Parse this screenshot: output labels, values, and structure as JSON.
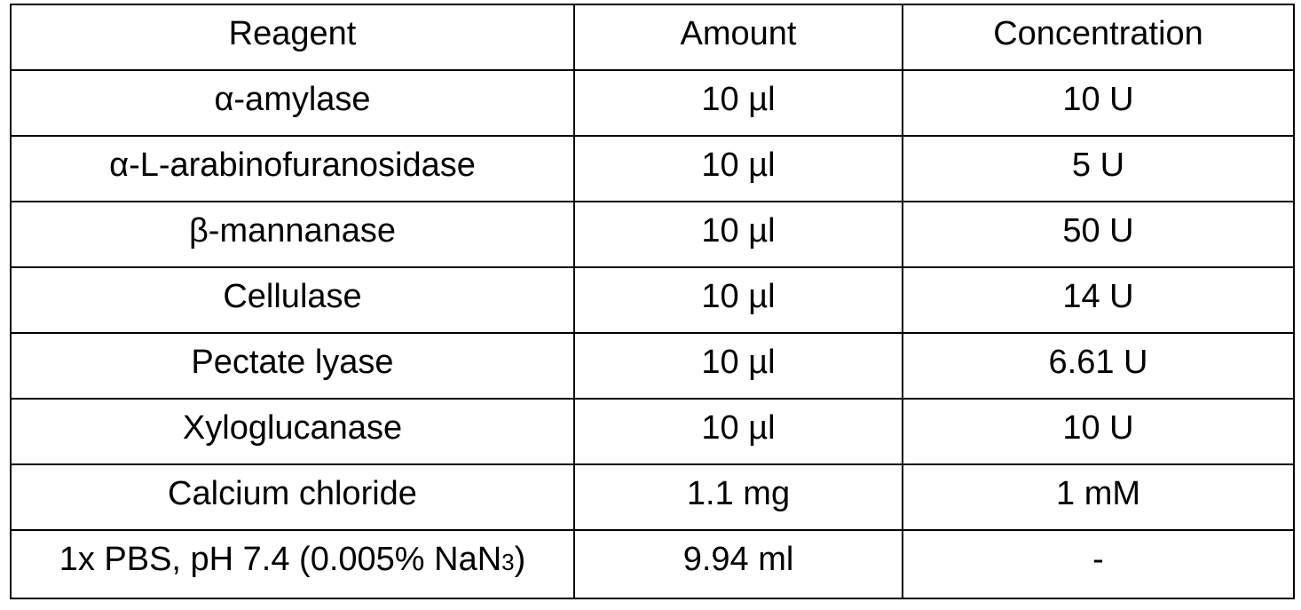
{
  "table": {
    "headers": [
      "Reagent",
      "Amount",
      "Concentration"
    ],
    "rows": [
      {
        "reagent": "α-amylase",
        "amount": "10 µl",
        "concentration": "10 U"
      },
      {
        "reagent": "α-L-arabinofuranosidase",
        "amount": "10 µl",
        "concentration": "5 U"
      },
      {
        "reagent": "β-mannanase",
        "amount": "10 µl",
        "concentration": "50 U"
      },
      {
        "reagent": "Cellulase",
        "amount": "10 µl",
        "concentration": "14 U"
      },
      {
        "reagent": "Pectate lyase",
        "amount": "10 µl",
        "concentration": "6.61 U"
      },
      {
        "reagent": "Xyloglucanase",
        "amount": "10 µl",
        "concentration": "10 U"
      },
      {
        "reagent": "Calcium chloride",
        "amount": "1.1 mg",
        "concentration": "1 mM"
      },
      {
        "reagent_main": "1x PBS, pH 7.4 (0.005% NaN",
        "reagent_sub": "3",
        "reagent_tail": ")",
        "amount": "9.94 ml",
        "concentration": "-"
      }
    ]
  }
}
